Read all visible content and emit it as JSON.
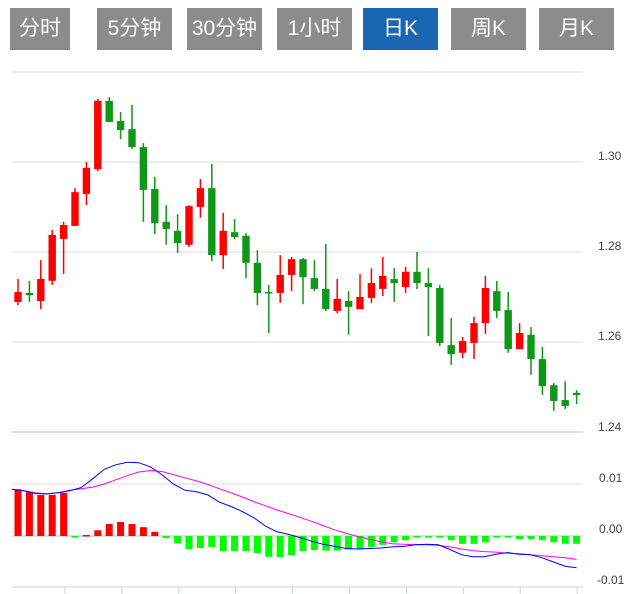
{
  "tabs": [
    {
      "label": "分时线",
      "active": false
    },
    {
      "label": "5分钟",
      "active": false
    },
    {
      "label": "30分钟",
      "active": false
    },
    {
      "label": "1小时",
      "active": false
    },
    {
      "label": "日K",
      "active": true
    },
    {
      "label": "周K",
      "active": false
    },
    {
      "label": "月K",
      "active": false
    }
  ],
  "colors": {
    "tab_bg": "#8c8c8c",
    "tab_active": "#1a66b3",
    "up": "#ff0000",
    "down": "#109618",
    "hist_up": "#ff0000",
    "hist_down": "#00ff00",
    "dif": "#0000ff",
    "dea": "#ff00ff",
    "grid": "#dddddd"
  },
  "chart_data": [
    {
      "type": "candlestick",
      "title": "",
      "ylim": [
        1.24,
        1.32
      ],
      "yticks": [
        "1.30",
        "1.28",
        "1.26",
        "1.24"
      ],
      "ytick_values": [
        1.3,
        1.28,
        1.26,
        1.24
      ],
      "grid": true,
      "fields": [
        "open",
        "high",
        "low",
        "close"
      ],
      "candles": [
        [
          1.2689,
          1.274,
          1.2682,
          1.2711
        ],
        [
          1.2709,
          1.2736,
          1.2689,
          1.2704
        ],
        [
          1.2691,
          1.2782,
          1.2673,
          1.274
        ],
        [
          1.2736,
          1.2849,
          1.2727,
          1.2838
        ],
        [
          1.2829,
          1.2867,
          1.2751,
          1.286
        ],
        [
          1.2858,
          1.2942,
          1.2858,
          1.2933
        ],
        [
          1.2929,
          1.3,
          1.2904,
          1.2987
        ],
        [
          1.2984,
          1.314,
          1.298,
          1.3136
        ],
        [
          1.3136,
          1.3144,
          1.3089,
          1.3089
        ],
        [
          1.3091,
          1.3111,
          1.3051,
          1.3071
        ],
        [
          1.3073,
          1.3127,
          1.3029,
          1.3033
        ],
        [
          1.3033,
          1.3042,
          1.2867,
          1.2938
        ],
        [
          1.294,
          1.2967,
          1.284,
          1.2864
        ],
        [
          1.2867,
          1.2904,
          1.2816,
          1.2851
        ],
        [
          1.2847,
          1.2884,
          1.2798,
          1.282
        ],
        [
          1.2816,
          1.2904,
          1.2811,
          1.2902
        ],
        [
          1.29,
          1.2962,
          1.2876,
          1.2942
        ],
        [
          1.2942,
          1.2996,
          1.278,
          1.2793
        ],
        [
          1.2793,
          1.2887,
          1.2762,
          1.2847
        ],
        [
          1.2844,
          1.2873,
          1.2829,
          1.2833
        ],
        [
          1.2836,
          1.2842,
          1.2742,
          1.2776
        ],
        [
          1.2776,
          1.2804,
          1.2682,
          1.2709
        ],
        [
          1.2711,
          1.2727,
          1.262,
          1.2709
        ],
        [
          1.2709,
          1.2793,
          1.2687,
          1.2749
        ],
        [
          1.2749,
          1.2789,
          1.2713,
          1.2784
        ],
        [
          1.2784,
          1.2787,
          1.2684,
          1.2744
        ],
        [
          1.2742,
          1.2782,
          1.2713,
          1.2718
        ],
        [
          1.2718,
          1.2818,
          1.2669,
          1.2673
        ],
        [
          1.2669,
          1.274,
          1.2664,
          1.2696
        ],
        [
          1.2691,
          1.2713,
          1.2616,
          1.2678
        ],
        [
          1.2673,
          1.2751,
          1.2673,
          1.27
        ],
        [
          1.2698,
          1.2764,
          1.2687,
          1.2731
        ],
        [
          1.2718,
          1.2789,
          1.2702,
          1.2747
        ],
        [
          1.274,
          1.2764,
          1.2689,
          1.2731
        ],
        [
          1.2722,
          1.2767,
          1.2709,
          1.2756
        ],
        [
          1.2756,
          1.28,
          1.2718,
          1.2731
        ],
        [
          1.2731,
          1.2764,
          1.2613,
          1.2722
        ],
        [
          1.272,
          1.2727,
          1.2591,
          1.2598
        ],
        [
          1.2593,
          1.2653,
          1.2549,
          1.2573
        ],
        [
          1.2576,
          1.2611,
          1.2564,
          1.2602
        ],
        [
          1.2598,
          1.2656,
          1.2562,
          1.2642
        ],
        [
          1.2642,
          1.2747,
          1.2618,
          1.272
        ],
        [
          1.2713,
          1.2736,
          1.2653,
          1.2669
        ],
        [
          1.2671,
          1.2711,
          1.2576,
          1.2584
        ],
        [
          1.2584,
          1.2642,
          1.2584,
          1.262
        ],
        [
          1.2616,
          1.2633,
          1.2527,
          1.2562
        ],
        [
          1.2562,
          1.2589,
          1.2482,
          1.2502
        ],
        [
          1.2504,
          1.2509,
          1.2447,
          1.2469
        ],
        [
          1.2471,
          1.2513,
          1.2451,
          1.2458
        ],
        [
          1.2487,
          1.2493,
          1.2462,
          1.2482
        ]
      ]
    },
    {
      "type": "macd",
      "ylim": [
        -0.01,
        0.01
      ],
      "yticks": [
        "0.01",
        "0.00",
        "-0.01"
      ],
      "ytick_values": [
        0.01,
        0.0,
        -0.01
      ],
      "series": [
        {
          "name": "DIF",
          "values": [
            0.009,
            0.0087,
            0.0082,
            0.0081,
            0.0083,
            0.0087,
            0.0093,
            0.011,
            0.0128,
            0.0137,
            0.0142,
            0.0141,
            0.0133,
            0.0118,
            0.01,
            0.0088,
            0.0085,
            0.0079,
            0.0065,
            0.0057,
            0.0047,
            0.0035,
            0.0019,
            0.0008,
            0.0003,
            -0.0003,
            -0.001,
            -0.0016,
            -0.002,
            -0.0024,
            -0.0025,
            -0.0024,
            -0.0023,
            -0.0021,
            -0.002,
            -0.0017,
            -0.0016,
            -0.0017,
            -0.0026,
            -0.0036,
            -0.004,
            -0.004,
            -0.0035,
            -0.0032,
            -0.0035,
            -0.0036,
            -0.0042,
            -0.005,
            -0.0058,
            -0.0061
          ]
        },
        {
          "name": "DEA",
          "values": [
            0.009,
            0.0087,
            0.0083,
            0.0081,
            0.0083,
            0.0088,
            0.0091,
            0.0094,
            0.01,
            0.0108,
            0.0116,
            0.0123,
            0.0126,
            0.0124,
            0.0118,
            0.0112,
            0.0106,
            0.0099,
            0.0091,
            0.0083,
            0.0075,
            0.0066,
            0.0058,
            0.005,
            0.0043,
            0.0036,
            0.0028,
            0.002,
            0.0012,
            0.0005,
            -0.0001,
            -0.0006,
            -0.0011,
            -0.0015,
            -0.0016,
            -0.0017,
            -0.0017,
            -0.0018,
            -0.0021,
            -0.0025,
            -0.0028,
            -0.003,
            -0.0031,
            -0.0033,
            -0.0034,
            -0.0036,
            -0.0038,
            -0.004,
            -0.0042,
            -0.0045
          ]
        },
        {
          "name": "MACD",
          "values": [
            0.009,
            0.0085,
            0.0079,
            0.0079,
            0.0083,
            -0.0001,
            0.0002,
            0.0011,
            0.0023,
            0.0027,
            0.0023,
            0.0017,
            0.0008,
            -0.0004,
            -0.0014,
            -0.0025,
            -0.0023,
            -0.0021,
            -0.0029,
            -0.0029,
            -0.0029,
            -0.0033,
            -0.004,
            -0.0041,
            -0.0037,
            -0.0029,
            -0.0027,
            -0.0028,
            -0.0028,
            -0.0026,
            -0.0026,
            -0.0021,
            -0.0017,
            -0.0012,
            -0.0008,
            -0.0003,
            -0.0003,
            -0.0003,
            -0.0008,
            -0.0015,
            -0.0015,
            -0.0012,
            -0.0003,
            -0.0003,
            -0.0006,
            -0.0006,
            -0.0008,
            -0.0012,
            -0.0015,
            -0.0015
          ]
        }
      ]
    }
  ]
}
